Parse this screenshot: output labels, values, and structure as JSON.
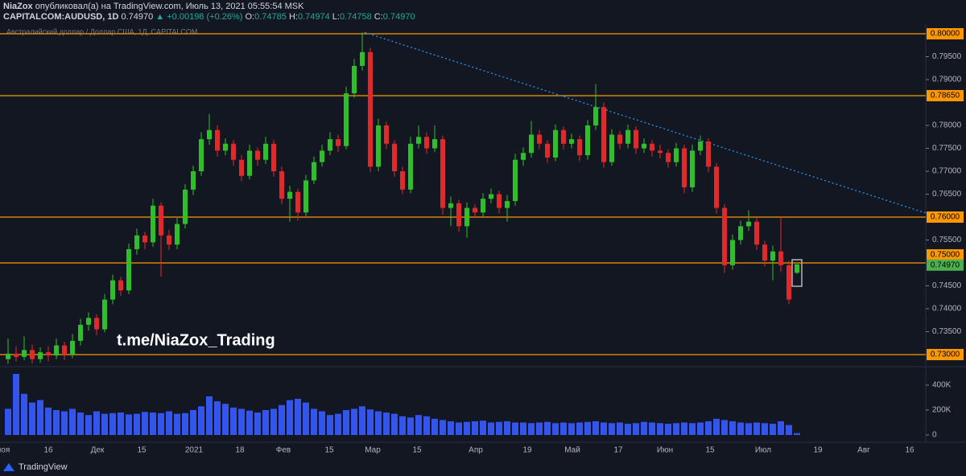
{
  "header": {
    "author": "NiaZox",
    "published": "опубликовал(а) на TradingView.com, Июль 13, 2021 05:55:54 MSK",
    "symbol": "CAPITALCOM:AUDUSD, 1D",
    "price": "0.74970",
    "change": "▲ +0.00198 (+0.26%)",
    "ohlc": [
      {
        "key": "O:",
        "value": "0.74785"
      },
      {
        "key": "H:",
        "value": "0.74974"
      },
      {
        "key": "L:",
        "value": "0.74758"
      },
      {
        "key": "C:",
        "value": "0.74970"
      }
    ]
  },
  "chart_data": {
    "type": "candlestick",
    "title": "Австралийский доллар / Доллар США, 1Д, CAPITALCOM",
    "watermark": "t.me/NiaZox_Trading",
    "up_color": "#2fbf2a",
    "down_color": "#e0292b",
    "volume_color": "#3355ee",
    "level_color": "#ff9800",
    "last_color": "#4caf50",
    "ylim": [
      0.72754,
      0.80211
    ],
    "yticks": [
      {
        "value": 0.735,
        "label": "0.73500"
      },
      {
        "value": 0.74,
        "label": "0.74000"
      },
      {
        "value": 0.745,
        "label": "0.74500"
      },
      {
        "value": 0.755,
        "label": "0.75500"
      },
      {
        "value": 0.765,
        "label": "0.76500"
      },
      {
        "value": 0.77,
        "label": "0.77000"
      },
      {
        "value": 0.775,
        "label": "0.77500"
      },
      {
        "value": 0.78,
        "label": "0.78000"
      },
      {
        "value": 0.79,
        "label": "0.79000"
      },
      {
        "value": 0.795,
        "label": "0.79500"
      }
    ],
    "levels": [
      {
        "value": 0.8,
        "label": "0.80000"
      },
      {
        "value": 0.7865,
        "label": "0.78650"
      },
      {
        "value": 0.76,
        "label": "0.76000"
      },
      {
        "value": 0.75,
        "label": "0.75000"
      },
      {
        "value": 0.73,
        "label": "0.73000"
      }
    ],
    "last_price": {
      "value": 0.7497,
      "label": "0.74970"
    },
    "trendline": {
      "color": "#2196f3",
      "start": 0.8003,
      "end": 0.7609
    },
    "xtick_labels": [
      "ноя",
      "16",
      "Дек",
      "15",
      "2021",
      "18",
      "Фев",
      "15",
      "Мар",
      "15",
      "Апр",
      "19",
      "Май",
      "17",
      "Июн",
      "15",
      "Июл",
      "19",
      "Авг",
      "16"
    ],
    "ohlc": [
      [
        0.729,
        0.7335,
        0.728,
        0.7302
      ],
      [
        0.7302,
        0.7318,
        0.7285,
        0.7295
      ],
      [
        0.7295,
        0.734,
        0.7288,
        0.731
      ],
      [
        0.731,
        0.7322,
        0.728,
        0.729
      ],
      [
        0.729,
        0.7316,
        0.7282,
        0.7305
      ],
      [
        0.7305,
        0.7318,
        0.7285,
        0.7298
      ],
      [
        0.7298,
        0.7335,
        0.729,
        0.732
      ],
      [
        0.732,
        0.7328,
        0.7288,
        0.73
      ],
      [
        0.73,
        0.7345,
        0.7292,
        0.733
      ],
      [
        0.733,
        0.7378,
        0.732,
        0.7365
      ],
      [
        0.7365,
        0.7392,
        0.7352,
        0.738
      ],
      [
        0.738,
        0.7388,
        0.7342,
        0.7355
      ],
      [
        0.7355,
        0.7432,
        0.7348,
        0.742
      ],
      [
        0.742,
        0.7474,
        0.741,
        0.7462
      ],
      [
        0.7462,
        0.747,
        0.7428,
        0.744
      ],
      [
        0.744,
        0.7542,
        0.7432,
        0.753
      ],
      [
        0.753,
        0.7575,
        0.7518,
        0.756
      ],
      [
        0.756,
        0.7568,
        0.753,
        0.7545
      ],
      [
        0.7545,
        0.764,
        0.7535,
        0.7625
      ],
      [
        0.7625,
        0.7632,
        0.747,
        0.756
      ],
      [
        0.756,
        0.7572,
        0.7528,
        0.754
      ],
      [
        0.754,
        0.7598,
        0.753,
        0.7585
      ],
      [
        0.7585,
        0.7672,
        0.7575,
        0.766
      ],
      [
        0.766,
        0.7712,
        0.7648,
        0.77
      ],
      [
        0.77,
        0.7785,
        0.769,
        0.777
      ],
      [
        0.777,
        0.7825,
        0.7758,
        0.779
      ],
      [
        0.779,
        0.78,
        0.7732,
        0.7745
      ],
      [
        0.7745,
        0.7772,
        0.7735,
        0.776
      ],
      [
        0.776,
        0.7768,
        0.7712,
        0.7725
      ],
      [
        0.7725,
        0.7735,
        0.7678,
        0.769
      ],
      [
        0.769,
        0.7758,
        0.7682,
        0.7745
      ],
      [
        0.7745,
        0.7752,
        0.7712,
        0.7725
      ],
      [
        0.7725,
        0.7775,
        0.7716,
        0.776
      ],
      [
        0.776,
        0.7768,
        0.7688,
        0.77
      ],
      [
        0.77,
        0.771,
        0.7628,
        0.764
      ],
      [
        0.764,
        0.7668,
        0.759,
        0.7655
      ],
      [
        0.7655,
        0.7662,
        0.7592,
        0.761
      ],
      [
        0.761,
        0.7692,
        0.7602,
        0.768
      ],
      [
        0.768,
        0.7732,
        0.7672,
        0.772
      ],
      [
        0.772,
        0.7758,
        0.771,
        0.7745
      ],
      [
        0.7745,
        0.7785,
        0.7735,
        0.777
      ],
      [
        0.777,
        0.778,
        0.7742,
        0.7755
      ],
      [
        0.7755,
        0.7885,
        0.7748,
        0.787
      ],
      [
        0.787,
        0.7945,
        0.786,
        0.793
      ],
      [
        0.793,
        0.8003,
        0.792,
        0.796
      ],
      [
        0.796,
        0.797,
        0.7698,
        0.771
      ],
      [
        0.771,
        0.7815,
        0.77,
        0.78
      ],
      [
        0.78,
        0.7808,
        0.7748,
        0.776
      ],
      [
        0.776,
        0.7768,
        0.7688,
        0.77
      ],
      [
        0.77,
        0.771,
        0.765,
        0.766
      ],
      [
        0.766,
        0.7775,
        0.7652,
        0.776
      ],
      [
        0.776,
        0.78,
        0.775,
        0.7775
      ],
      [
        0.7775,
        0.7785,
        0.7738,
        0.775
      ],
      [
        0.775,
        0.78,
        0.7742,
        0.777
      ],
      [
        0.777,
        0.7778,
        0.7605,
        0.762
      ],
      [
        0.762,
        0.7645,
        0.758,
        0.763
      ],
      [
        0.763,
        0.7638,
        0.7568,
        0.758
      ],
      [
        0.758,
        0.7632,
        0.7555,
        0.762
      ],
      [
        0.762,
        0.7628,
        0.7598,
        0.761
      ],
      [
        0.761,
        0.7652,
        0.76,
        0.764
      ],
      [
        0.764,
        0.7662,
        0.763,
        0.765
      ],
      [
        0.765,
        0.7658,
        0.7608,
        0.762
      ],
      [
        0.762,
        0.7648,
        0.759,
        0.7635
      ],
      [
        0.7635,
        0.7738,
        0.7625,
        0.7725
      ],
      [
        0.7725,
        0.7752,
        0.7712,
        0.774
      ],
      [
        0.774,
        0.781,
        0.773,
        0.778
      ],
      [
        0.778,
        0.779,
        0.7748,
        0.776
      ],
      [
        0.776,
        0.7768,
        0.7718,
        0.773
      ],
      [
        0.773,
        0.7802,
        0.7722,
        0.779
      ],
      [
        0.779,
        0.7798,
        0.7748,
        0.776
      ],
      [
        0.776,
        0.7782,
        0.775,
        0.777
      ],
      [
        0.777,
        0.7778,
        0.7722,
        0.7735
      ],
      [
        0.7735,
        0.7812,
        0.7725,
        0.78
      ],
      [
        0.78,
        0.789,
        0.779,
        0.784
      ],
      [
        0.784,
        0.785,
        0.7708,
        0.772
      ],
      [
        0.772,
        0.7792,
        0.7712,
        0.778
      ],
      [
        0.778,
        0.7788,
        0.7748,
        0.776
      ],
      [
        0.776,
        0.7802,
        0.775,
        0.779
      ],
      [
        0.779,
        0.7798,
        0.7738,
        0.775
      ],
      [
        0.775,
        0.7772,
        0.774,
        0.776
      ],
      [
        0.776,
        0.7768,
        0.7732,
        0.7745
      ],
      [
        0.7745,
        0.7758,
        0.7728,
        0.774
      ],
      [
        0.774,
        0.7748,
        0.7708,
        0.772
      ],
      [
        0.772,
        0.7762,
        0.771,
        0.775
      ],
      [
        0.775,
        0.7758,
        0.7652,
        0.7665
      ],
      [
        0.7665,
        0.7758,
        0.7655,
        0.7745
      ],
      [
        0.7745,
        0.7778,
        0.7735,
        0.7765
      ],
      [
        0.7765,
        0.7772,
        0.7698,
        0.771
      ],
      [
        0.771,
        0.7718,
        0.7608,
        0.762
      ],
      [
        0.762,
        0.7628,
        0.7478,
        0.7495
      ],
      [
        0.7495,
        0.7562,
        0.7485,
        0.755
      ],
      [
        0.755,
        0.7592,
        0.754,
        0.758
      ],
      [
        0.758,
        0.7615,
        0.757,
        0.759
      ],
      [
        0.759,
        0.7598,
        0.7528,
        0.754
      ],
      [
        0.754,
        0.7548,
        0.7492,
        0.7505
      ],
      [
        0.7505,
        0.7538,
        0.7462,
        0.7525
      ],
      [
        0.7525,
        0.7602,
        0.748,
        0.7495
      ],
      [
        0.7495,
        0.7505,
        0.741,
        0.742
      ],
      [
        0.74785,
        0.74974,
        0.74758,
        0.7497
      ]
    ],
    "volume": [
      210000,
      490000,
      330000,
      260000,
      280000,
      220000,
      200000,
      190000,
      210000,
      180000,
      160000,
      190000,
      170000,
      175000,
      180000,
      165000,
      170000,
      185000,
      180000,
      175000,
      190000,
      170000,
      175000,
      200000,
      230000,
      310000,
      270000,
      250000,
      220000,
      210000,
      195000,
      180000,
      200000,
      210000,
      240000,
      280000,
      290000,
      260000,
      210000,
      190000,
      160000,
      170000,
      200000,
      210000,
      230000,
      205000,
      190000,
      180000,
      170000,
      150000,
      140000,
      160000,
      150000,
      130000,
      120000,
      110000,
      100000,
      105000,
      110000,
      115000,
      100000,
      105000,
      110000,
      100000,
      100000,
      95000,
      100000,
      105000,
      95000,
      100000,
      95000,
      100000,
      105000,
      110000,
      100000,
      95000,
      100000,
      90000,
      95000,
      105000,
      100000,
      95000,
      90000,
      95000,
      100000,
      95000,
      100000,
      110000,
      130000,
      120000,
      110000,
      100000,
      95000,
      100000,
      95000,
      90000,
      110000,
      80000,
      15000
    ],
    "volume_ylim": [
      0,
      535000
    ],
    "volume_yticks": [
      0,
      {
        "value": 200000,
        "label": "200K"
      },
      {
        "value": 400000,
        "label": "400K"
      }
    ]
  },
  "footer": {
    "brand": "TradingView"
  }
}
